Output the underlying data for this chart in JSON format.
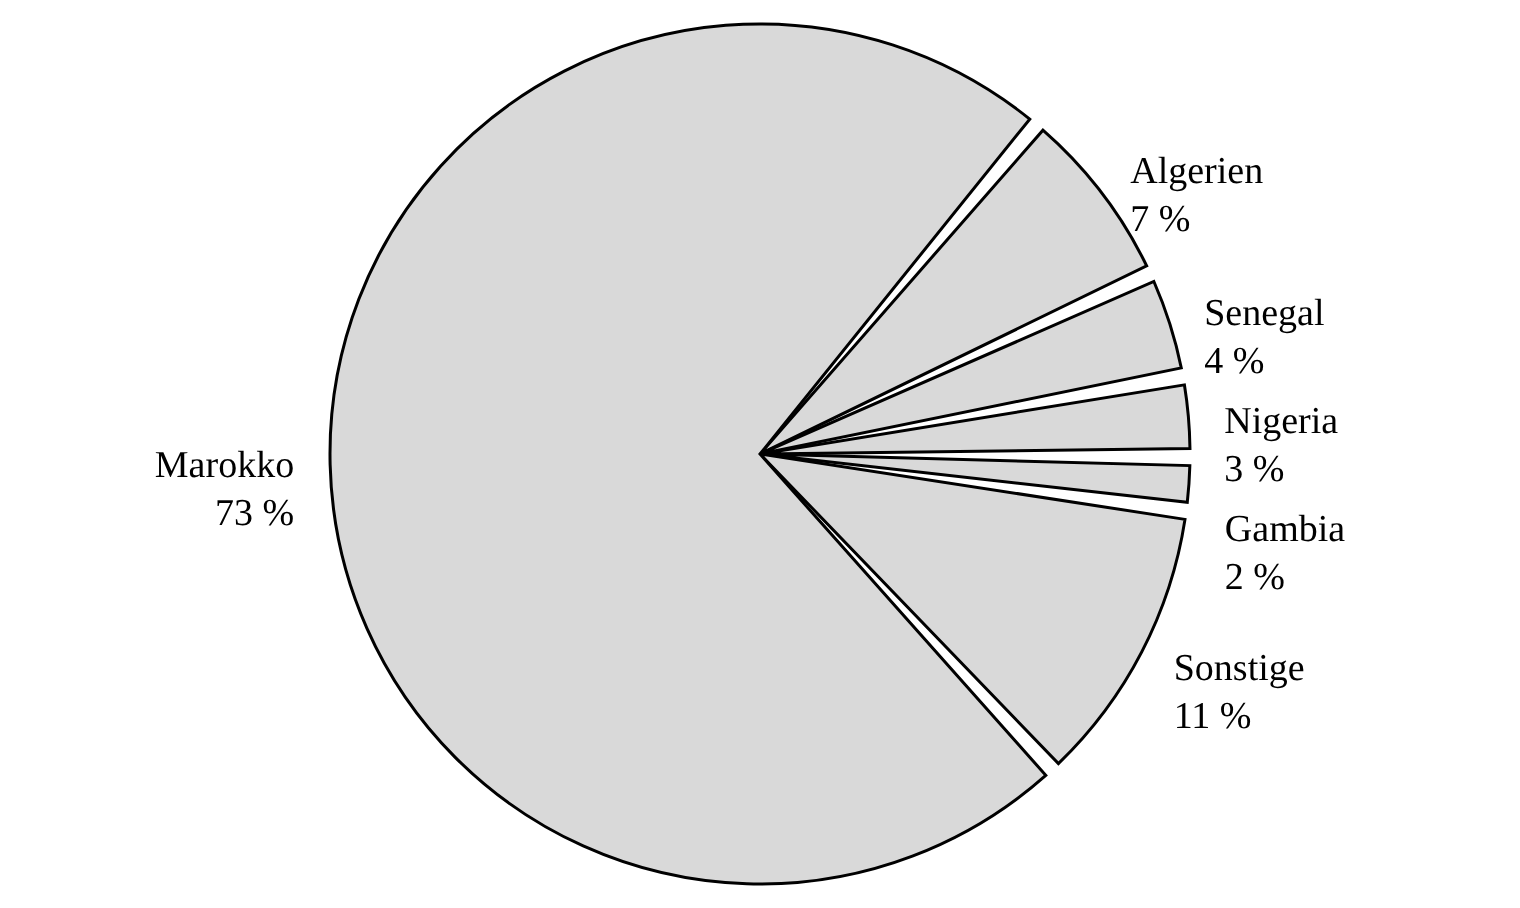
{
  "chart_data": {
    "type": "pie",
    "categories": [
      "Algerien",
      "Senegal",
      "Nigeria",
      "Gambia",
      "Sonstige",
      "Marokko"
    ],
    "values": [
      7,
      4,
      3,
      2,
      11,
      73
    ],
    "value_labels": [
      "7 %",
      "4 %",
      "3 %",
      "2 %",
      "11 %",
      "73 %"
    ],
    "colors": [
      "#d9d9d9",
      "#d9d9d9",
      "#d9d9d9",
      "#d9d9d9",
      "#d9d9d9",
      "#d9d9d9"
    ]
  }
}
